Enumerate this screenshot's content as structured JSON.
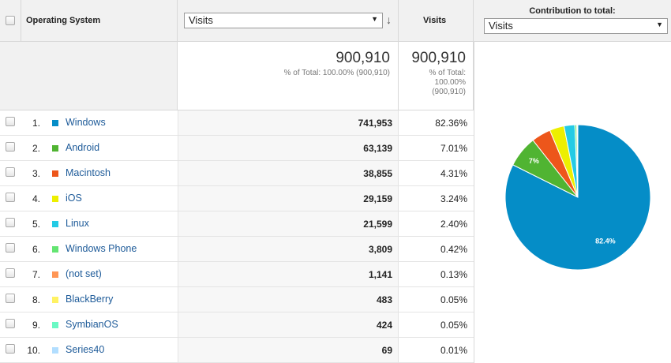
{
  "header": {
    "os": "Operating System",
    "metric_select": "Visits",
    "visits": "Visits",
    "contribution": "Contribution to total:",
    "contribution_select": "Visits"
  },
  "totals": {
    "visits": "900,910",
    "visits_note": "% of Total: 100.00% (900,910)",
    "contribution": "900,910",
    "contribution_note": "% of Total: 100.00% (900,910)"
  },
  "rows": [
    {
      "rank": "1.",
      "name": "Windows",
      "visits": "741,953",
      "share": "82.36%"
    },
    {
      "rank": "2.",
      "name": "Android",
      "visits": "63,139",
      "share": "7.01%"
    },
    {
      "rank": "3.",
      "name": "Macintosh",
      "visits": "38,855",
      "share": "4.31%"
    },
    {
      "rank": "4.",
      "name": "iOS",
      "visits": "29,159",
      "share": "3.24%"
    },
    {
      "rank": "5.",
      "name": "Linux",
      "visits": "21,599",
      "share": "2.40%"
    },
    {
      "rank": "6.",
      "name": "Windows Phone",
      "visits": "3,809",
      "share": "0.42%"
    },
    {
      "rank": "7.",
      "name": "(not set)",
      "visits": "1,141",
      "share": "0.13%"
    },
    {
      "rank": "8.",
      "name": "BlackBerry",
      "visits": "483",
      "share": "0.05%"
    },
    {
      "rank": "9.",
      "name": "SymbianOS",
      "visits": "424",
      "share": "0.05%"
    },
    {
      "rank": "10.",
      "name": "Series40",
      "visits": "69",
      "share": "0.01%"
    }
  ],
  "pie": {
    "type": "pie",
    "values": [
      82.36,
      7.01,
      4.31,
      3.24,
      2.4,
      0.42,
      0.13,
      0.05,
      0.05,
      0.01
    ],
    "colors": [
      "#058dc7",
      "#50b432",
      "#ed561b",
      "#edef00",
      "#24cbe5",
      "#64e572",
      "#ff9655",
      "#fff263",
      "#6af9c4",
      "#b2deff"
    ],
    "value_labels": [
      "82.4%",
      "7%",
      null,
      null,
      null,
      null,
      null,
      null,
      null,
      null
    ]
  }
}
